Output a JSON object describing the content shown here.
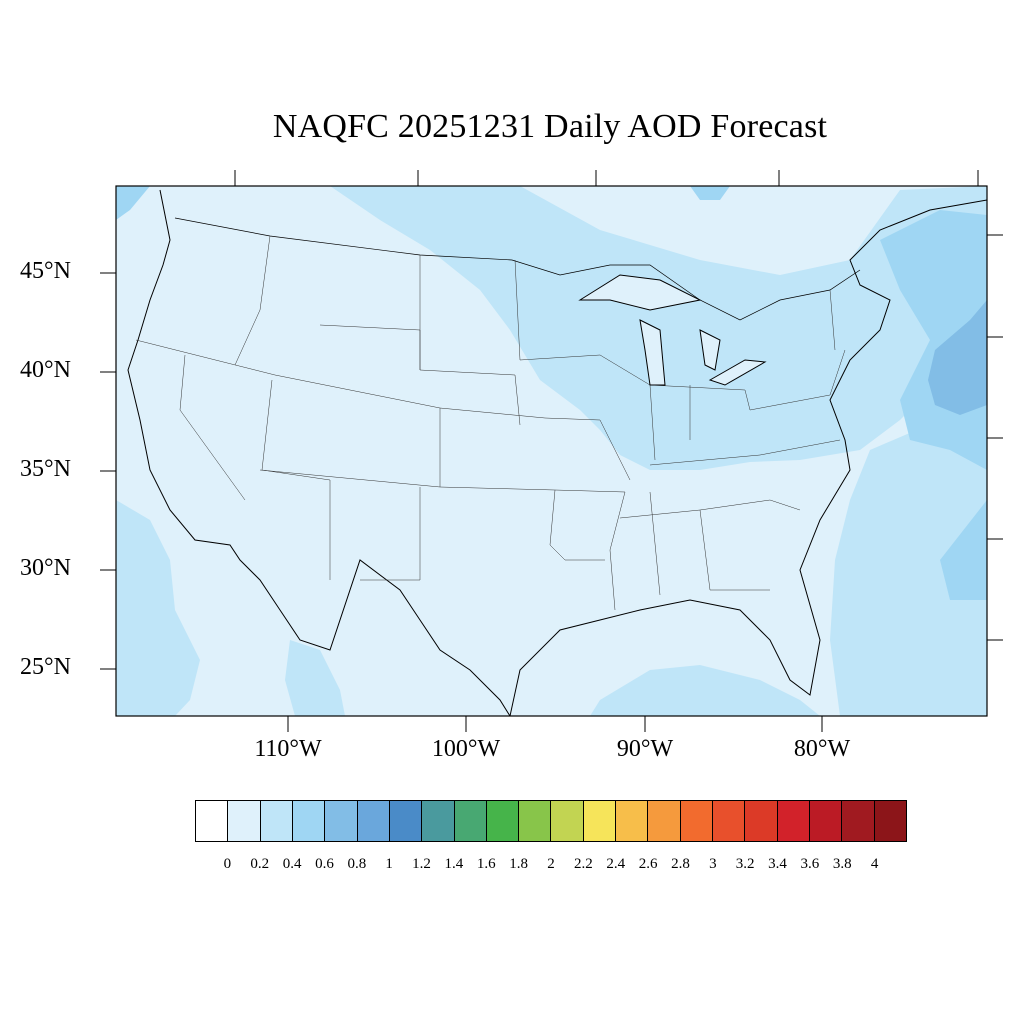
{
  "title": "NAQFC 20251231 Daily AOD Forecast",
  "map": {
    "latitude_labels": [
      "45°N",
      "40°N",
      "35°N",
      "30°N",
      "25°N"
    ],
    "longitude_labels": [
      "110°W",
      "100°W",
      "90°W",
      "80°W"
    ],
    "background_color": "#dff1fb",
    "region": "Continental United States"
  },
  "colorbar": {
    "labels": [
      "0",
      "0.2",
      "0.4",
      "0.6",
      "0.8",
      "1",
      "1.2",
      "1.4",
      "1.6",
      "1.8",
      "2",
      "2.2",
      "2.4",
      "2.6",
      "2.8",
      "3",
      "3.2",
      "3.4",
      "3.6",
      "3.8",
      "4"
    ],
    "colors": [
      "#ffffff",
      "#dff1fb",
      "#bfe5f8",
      "#9fd6f3",
      "#82bde6",
      "#6aa7dc",
      "#4a8bc8",
      "#4a9a9e",
      "#48a872",
      "#46b44a",
      "#88c54a",
      "#c2d452",
      "#f6e45a",
      "#f7be4a",
      "#f59a3d",
      "#f26b2e",
      "#e8502c",
      "#dc3a27",
      "#d2222a",
      "#bb1b25",
      "#a01a20",
      "#8c1519"
    ]
  }
}
